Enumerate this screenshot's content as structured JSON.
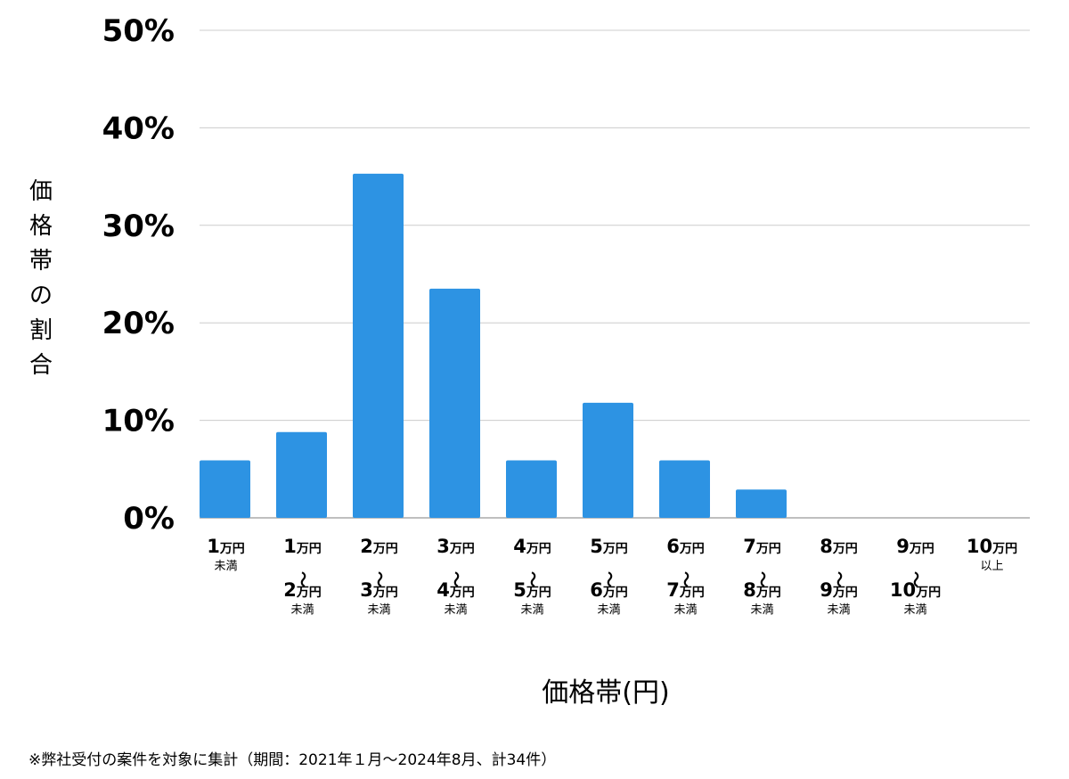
{
  "chart_data": {
    "type": "bar",
    "title": "",
    "xlabel": "価格帯(円)",
    "ylabel": "価格帯の割合",
    "ylim": [
      0,
      50
    ],
    "yticks": [
      "0%",
      "10%",
      "20%",
      "30%",
      "40%",
      "50%"
    ],
    "grid": true,
    "categories": [
      {
        "lines": [
          "1万円",
          "未満"
        ]
      },
      {
        "lines": [
          "1万円",
          "〜",
          "2万円",
          "未満"
        ]
      },
      {
        "lines": [
          "2万円",
          "〜",
          "3万円",
          "未満"
        ]
      },
      {
        "lines": [
          "3万円",
          "〜",
          "4万円",
          "未満"
        ]
      },
      {
        "lines": [
          "4万円",
          "〜",
          "5万円",
          "未満"
        ]
      },
      {
        "lines": [
          "5万円",
          "〜",
          "6万円",
          "未満"
        ]
      },
      {
        "lines": [
          "6万円",
          "〜",
          "7万円",
          "未満"
        ]
      },
      {
        "lines": [
          "7万円",
          "〜",
          "8万円",
          "未満"
        ]
      },
      {
        "lines": [
          "8万円",
          "〜",
          "9万円",
          "未満"
        ]
      },
      {
        "lines": [
          "9万円",
          "〜",
          "10万円",
          "未満"
        ]
      },
      {
        "lines": [
          "10万円",
          "以上"
        ]
      }
    ],
    "values": [
      5.9,
      8.8,
      35.3,
      23.5,
      5.9,
      11.8,
      5.9,
      2.9,
      0,
      0,
      0
    ],
    "bar_color": "#2d93e3"
  },
  "footnote": "※弊社受付の案件を対象に集計（期間：2021年１月〜2024年8月、計34件）"
}
